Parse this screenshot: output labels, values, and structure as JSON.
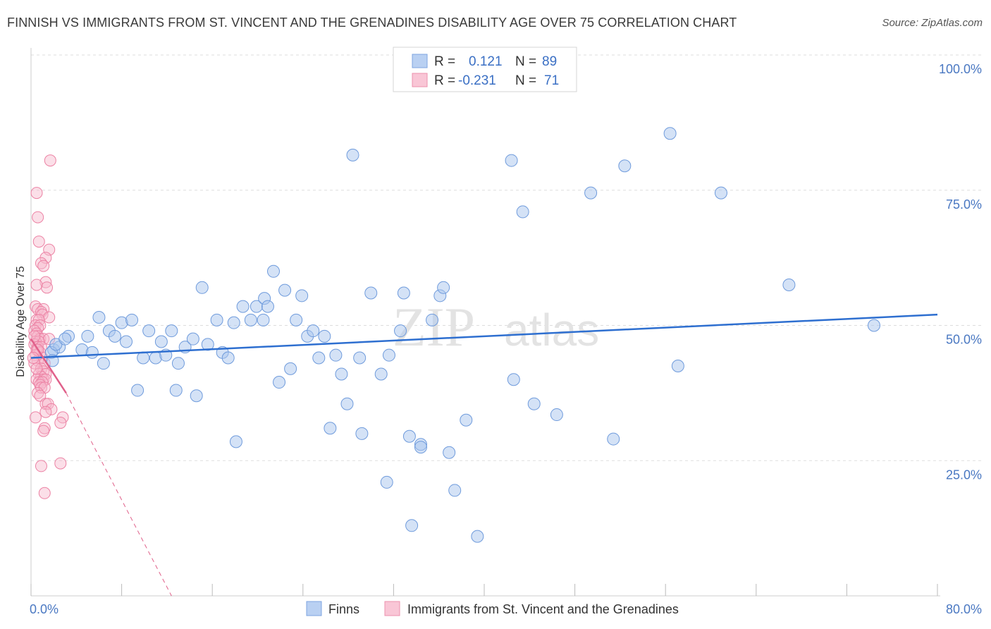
{
  "title": "FINNISH VS IMMIGRANTS FROM ST. VINCENT AND THE GRENADINES DISABILITY AGE OVER 75 CORRELATION CHART",
  "source": "Source: ZipAtlas.com",
  "watermark": {
    "zip": "ZIP",
    "atlas": "atlas"
  },
  "legend": {
    "r_label": "R =",
    "n_label": "N =",
    "series": [
      {
        "r": "0.121",
        "n": "89"
      },
      {
        "r": "-0.231",
        "n": "71"
      }
    ]
  },
  "colors": {
    "finns_fill": "#a9c5ee",
    "finns_stroke": "#6f9bdc",
    "finns_line": "#2e6fd0",
    "svg_fill": "#f6b9cc",
    "svg_stroke": "#ec82a4",
    "svg_line": "#e0608a",
    "grid": "#dddddd",
    "tick_label": "#4a78c2"
  },
  "chart_data": {
    "type": "scatter",
    "title": "FINNISH VS IMMIGRANTS FROM ST. VINCENT AND THE GRENADINES DISABILITY AGE OVER 75 CORRELATION CHART",
    "xlabel": "",
    "ylabel": "Disability Age Over 75",
    "xlim": [
      0,
      80
    ],
    "ylim": [
      0,
      100
    ],
    "x_tick_labels": [
      "0.0%",
      "80.0%"
    ],
    "y_tick_labels": [
      "25.0%",
      "50.0%",
      "75.0%",
      "100.0%"
    ],
    "y_ticks": [
      25,
      50,
      75,
      100
    ],
    "x_minor_ticks": [
      0,
      8,
      16,
      24,
      32,
      40,
      48,
      56,
      64,
      72,
      80
    ],
    "series": [
      {
        "name": "Finns",
        "trend": {
          "x": [
            0,
            80
          ],
          "y": [
            44.0,
            52.0
          ],
          "style": "solid"
        },
        "points": [
          [
            2.0,
            45.5
          ],
          [
            2.5,
            46.0
          ],
          [
            1.8,
            45.0
          ],
          [
            3.3,
            48.0
          ],
          [
            4.5,
            45.5
          ],
          [
            5.0,
            48.0
          ],
          [
            5.4,
            45.0
          ],
          [
            6.0,
            51.5
          ],
          [
            6.4,
            43.0
          ],
          [
            6.9,
            49.0
          ],
          [
            7.4,
            48.0
          ],
          [
            8.0,
            50.5
          ],
          [
            8.4,
            47.0
          ],
          [
            8.9,
            51.0
          ],
          [
            9.4,
            38.0
          ],
          [
            9.9,
            44.0
          ],
          [
            10.4,
            49.0
          ],
          [
            11.0,
            44.0
          ],
          [
            11.5,
            47.0
          ],
          [
            11.9,
            44.5
          ],
          [
            12.4,
            49.0
          ],
          [
            13.0,
            43.0
          ],
          [
            12.8,
            38.0
          ],
          [
            13.6,
            46.0
          ],
          [
            14.3,
            47.5
          ],
          [
            14.6,
            37.0
          ],
          [
            15.1,
            57.0
          ],
          [
            15.6,
            46.5
          ],
          [
            16.4,
            51.0
          ],
          [
            16.9,
            45.0
          ],
          [
            17.4,
            44.0
          ],
          [
            17.9,
            50.5
          ],
          [
            18.1,
            28.5
          ],
          [
            18.7,
            53.5
          ],
          [
            19.4,
            51.0
          ],
          [
            19.9,
            53.5
          ],
          [
            20.6,
            55.0
          ],
          [
            20.9,
            53.5
          ],
          [
            21.4,
            60.0
          ],
          [
            21.9,
            39.5
          ],
          [
            22.4,
            56.5
          ],
          [
            22.9,
            42.0
          ],
          [
            23.4,
            51.0
          ],
          [
            23.9,
            55.5
          ],
          [
            24.4,
            48.0
          ],
          [
            24.9,
            49.0
          ],
          [
            25.4,
            44.0
          ],
          [
            25.9,
            48.0
          ],
          [
            26.4,
            31.0
          ],
          [
            26.9,
            44.5
          ],
          [
            27.4,
            41.0
          ],
          [
            27.9,
            35.5
          ],
          [
            28.4,
            81.5
          ],
          [
            29.0,
            44.0
          ],
          [
            29.2,
            30.0
          ],
          [
            30.0,
            56.0
          ],
          [
            30.9,
            41.0
          ],
          [
            31.4,
            21.0
          ],
          [
            31.6,
            44.5
          ],
          [
            32.6,
            49.0
          ],
          [
            32.9,
            56.0
          ],
          [
            33.4,
            29.5
          ],
          [
            33.6,
            13.0
          ],
          [
            34.4,
            28.0
          ],
          [
            34.4,
            27.5
          ],
          [
            35.4,
            51.0
          ],
          [
            36.1,
            55.5
          ],
          [
            36.4,
            57.0
          ],
          [
            36.9,
            26.5
          ],
          [
            37.4,
            19.5
          ],
          [
            38.4,
            32.5
          ],
          [
            39.4,
            11.0
          ],
          [
            42.4,
            80.5
          ],
          [
            42.6,
            40.0
          ],
          [
            43.4,
            71.0
          ],
          [
            44.4,
            35.5
          ],
          [
            46.4,
            33.5
          ],
          [
            49.4,
            74.5
          ],
          [
            51.4,
            29.0
          ],
          [
            52.4,
            79.5
          ],
          [
            56.4,
            85.5
          ],
          [
            57.1,
            42.5
          ],
          [
            60.9,
            74.5
          ],
          [
            66.9,
            57.5
          ],
          [
            74.4,
            50.0
          ],
          [
            1.9,
            43.5
          ],
          [
            2.2,
            46.5
          ],
          [
            3.0,
            47.5
          ],
          [
            20.5,
            51.0
          ]
        ]
      },
      {
        "name": "Immigrants from St. Vincent and the Grenadines",
        "trend": {
          "x": [
            0,
            3.1
          ],
          "y": [
            47.5,
            37.5
          ],
          "style": "solid",
          "extension": {
            "x": [
              3.1,
              12.4
            ],
            "y": [
              37.5,
              0
            ]
          }
        },
        "points": [
          [
            1.7,
            80.5
          ],
          [
            0.5,
            74.5
          ],
          [
            0.6,
            70.0
          ],
          [
            0.7,
            65.5
          ],
          [
            1.6,
            64.0
          ],
          [
            1.3,
            62.5
          ],
          [
            0.9,
            61.5
          ],
          [
            1.1,
            61.0
          ],
          [
            1.3,
            58.0
          ],
          [
            1.4,
            57.0
          ],
          [
            0.5,
            57.5
          ],
          [
            0.4,
            53.5
          ],
          [
            0.6,
            53.0
          ],
          [
            1.1,
            53.0
          ],
          [
            0.9,
            52.5
          ],
          [
            1.0,
            52.0
          ],
          [
            1.6,
            51.5
          ],
          [
            0.5,
            51.0
          ],
          [
            0.7,
            51.0
          ],
          [
            0.4,
            50.0
          ],
          [
            0.8,
            50.0
          ],
          [
            0.6,
            49.5
          ],
          [
            0.3,
            49.0
          ],
          [
            0.5,
            48.5
          ],
          [
            0.6,
            48.0
          ],
          [
            0.8,
            47.5
          ],
          [
            1.1,
            47.5
          ],
          [
            1.6,
            47.5
          ],
          [
            0.4,
            47.0
          ],
          [
            0.7,
            47.0
          ],
          [
            0.3,
            46.5
          ],
          [
            0.6,
            46.0
          ],
          [
            0.9,
            46.0
          ],
          [
            0.5,
            45.5
          ],
          [
            0.8,
            45.0
          ],
          [
            0.4,
            44.5
          ],
          [
            1.0,
            44.0
          ],
          [
            0.6,
            43.5
          ],
          [
            1.2,
            43.0
          ],
          [
            0.3,
            43.0
          ],
          [
            0.9,
            42.0
          ],
          [
            1.1,
            41.5
          ],
          [
            0.7,
            41.0
          ],
          [
            1.3,
            41.0
          ],
          [
            0.9,
            40.5
          ],
          [
            0.5,
            40.0
          ],
          [
            1.1,
            40.0
          ],
          [
            1.3,
            40.0
          ],
          [
            0.7,
            39.5
          ],
          [
            1.0,
            39.5
          ],
          [
            0.8,
            39.0
          ],
          [
            0.9,
            38.5
          ],
          [
            1.2,
            38.5
          ],
          [
            0.6,
            37.5
          ],
          [
            0.8,
            37.0
          ],
          [
            1.3,
            35.5
          ],
          [
            1.5,
            35.5
          ],
          [
            1.8,
            34.5
          ],
          [
            1.3,
            34.0
          ],
          [
            2.8,
            33.0
          ],
          [
            0.4,
            33.0
          ],
          [
            2.6,
            32.0
          ],
          [
            1.2,
            31.0
          ],
          [
            1.1,
            30.5
          ],
          [
            0.9,
            24.0
          ],
          [
            2.6,
            24.5
          ],
          [
            1.2,
            19.0
          ],
          [
            0.6,
            45.5
          ],
          [
            0.2,
            44.0
          ],
          [
            0.5,
            42.0
          ],
          [
            0.3,
            48.0
          ]
        ]
      }
    ]
  },
  "bottom_legend": [
    "Finns",
    "Immigrants from St. Vincent and the Grenadines"
  ]
}
